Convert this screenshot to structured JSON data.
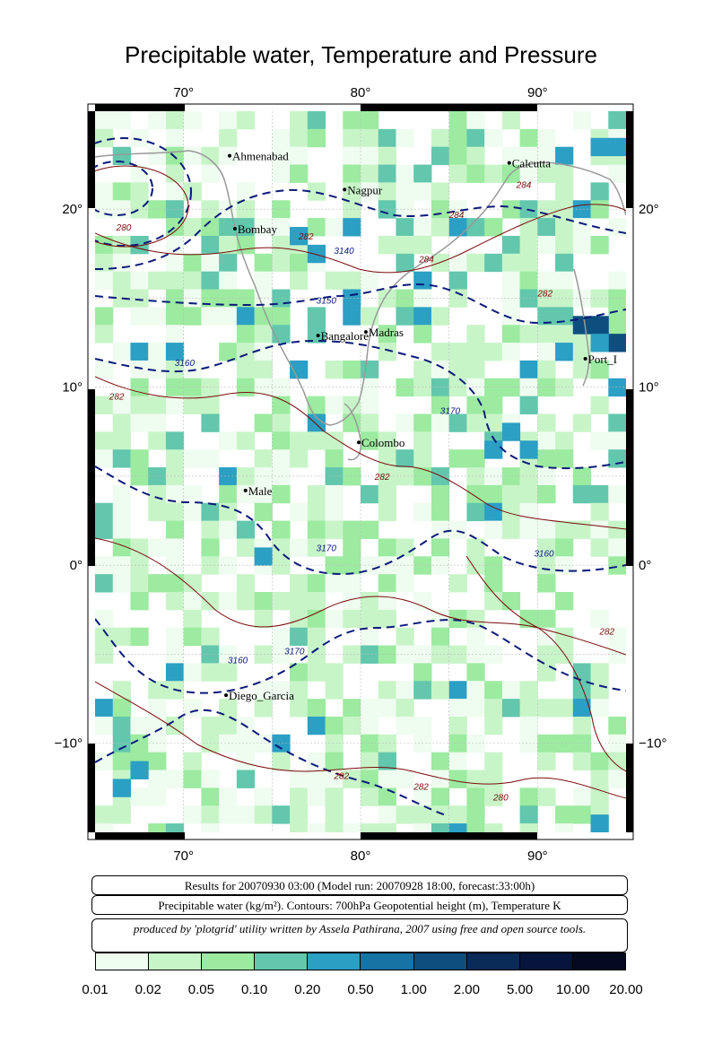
{
  "title": "Precipitable water, Temperature and Pressure",
  "map": {
    "lon_ticks": [
      "70°",
      "80°",
      "90°"
    ],
    "lat_ticks": [
      "20°",
      "10°",
      "0°",
      "−10°"
    ],
    "cities": [
      {
        "name": "Ahmenabad",
        "lon": 72.6,
        "lat": 23.0
      },
      {
        "name": "Nagpur",
        "lon": 79.1,
        "lat": 21.1
      },
      {
        "name": "Calcutta",
        "lon": 88.4,
        "lat": 22.6
      },
      {
        "name": "Bombay",
        "lon": 72.9,
        "lat": 18.9
      },
      {
        "name": "Bangalore",
        "lon": 77.6,
        "lat": 12.9
      },
      {
        "name": "Madras",
        "lon": 80.3,
        "lat": 13.1
      },
      {
        "name": "Port_Blair",
        "lon": 92.7,
        "lat": 11.6
      },
      {
        "name": "Colombo",
        "lon": 79.9,
        "lat": 6.9
      },
      {
        "name": "Male",
        "lon": 73.5,
        "lat": 4.2
      },
      {
        "name": "Diego_Garcia",
        "lon": 72.4,
        "lat": -7.3
      }
    ],
    "city_labels": {
      "Ahmenabad": "Ahmenabad",
      "Nagpur": "Nagpur",
      "Calcutta": "Calcutta",
      "Bombay": "Bombay",
      "Bangalore": "Bangalore",
      "Madras": "Madras",
      "Port_Blair": "Port_I",
      "Colombo": "Colombo",
      "Male": "Male",
      "Diego_Garcia": "Diego_Garcia"
    },
    "height_contour_labels": [
      "3140",
      "3150",
      "3160",
      "3160",
      "3170",
      "3170",
      "3160",
      "3170"
    ],
    "temp_contour_labels": [
      "280",
      "282",
      "284",
      "284",
      "284",
      "282",
      "282",
      "282",
      "282",
      "282",
      "280",
      "282"
    ]
  },
  "info_boxes": {
    "results": "Results for 20070930 03:00 (Model run: 20070928 18:00, forecast:33:00h)",
    "variables": "Precipitable water (kg/m²).  Contours: 700hPa Geopotential height (m), Temperature K",
    "credit": "produced by 'plotgrid' utility written by Assela Pathirana, 2007 using free and open source tools."
  },
  "colorbar": {
    "labels": [
      "0.01",
      "0.02",
      "0.05",
      "0.10",
      "0.20",
      "0.50",
      "1.00",
      "2.00",
      "5.00",
      "10.00",
      "20.00"
    ],
    "colors": [
      "#effcf0",
      "#c8f5c8",
      "#9ceba0",
      "#62c7ad",
      "#2b9fc4",
      "#1773a4",
      "#0d4e7e",
      "#0a2a57",
      "#07153c",
      "#050a20"
    ]
  }
}
